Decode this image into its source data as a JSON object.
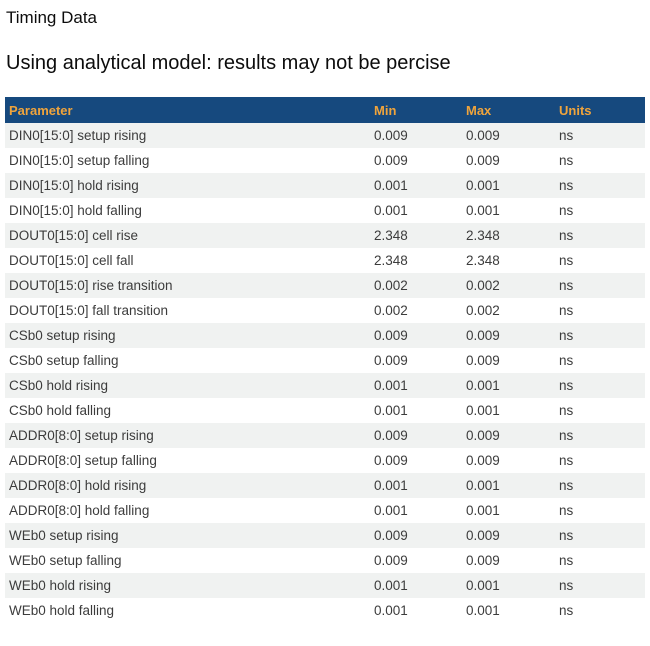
{
  "page": {
    "title": "Timing Data",
    "subtitle": "Using analytical model: results may not be percise"
  },
  "table": {
    "columns": [
      "Parameter",
      "Min",
      "Max",
      "Units"
    ],
    "rows": [
      [
        "DIN0[15:0] setup rising",
        "0.009",
        "0.009",
        "ns"
      ],
      [
        "DIN0[15:0] setup falling",
        "0.009",
        "0.009",
        "ns"
      ],
      [
        "DIN0[15:0] hold rising",
        "0.001",
        "0.001",
        "ns"
      ],
      [
        "DIN0[15:0] hold falling",
        "0.001",
        "0.001",
        "ns"
      ],
      [
        "DOUT0[15:0] cell rise",
        "2.348",
        "2.348",
        "ns"
      ],
      [
        "DOUT0[15:0] cell fall",
        "2.348",
        "2.348",
        "ns"
      ],
      [
        "DOUT0[15:0] rise transition",
        "0.002",
        "0.002",
        "ns"
      ],
      [
        "DOUT0[15:0] fall transition",
        "0.002",
        "0.002",
        "ns"
      ],
      [
        "CSb0 setup rising",
        "0.009",
        "0.009",
        "ns"
      ],
      [
        "CSb0 setup falling",
        "0.009",
        "0.009",
        "ns"
      ],
      [
        "CSb0 hold rising",
        "0.001",
        "0.001",
        "ns"
      ],
      [
        "CSb0 hold falling",
        "0.001",
        "0.001",
        "ns"
      ],
      [
        "ADDR0[8:0] setup rising",
        "0.009",
        "0.009",
        "ns"
      ],
      [
        "ADDR0[8:0] setup falling",
        "0.009",
        "0.009",
        "ns"
      ],
      [
        "ADDR0[8:0] hold rising",
        "0.001",
        "0.001",
        "ns"
      ],
      [
        "ADDR0[8:0] hold falling",
        "0.001",
        "0.001",
        "ns"
      ],
      [
        "WEb0 setup rising",
        "0.009",
        "0.009",
        "ns"
      ],
      [
        "WEb0 setup falling",
        "0.009",
        "0.009",
        "ns"
      ],
      [
        "WEb0 hold rising",
        "0.001",
        "0.001",
        "ns"
      ],
      [
        "WEb0 hold falling",
        "0.001",
        "0.001",
        "ns"
      ]
    ]
  },
  "colors": {
    "header_bg": "#16497e",
    "header_text": "#f0a43c",
    "row_alt_bg": "#f0f2f1",
    "row_text": "#3c3c3c"
  }
}
